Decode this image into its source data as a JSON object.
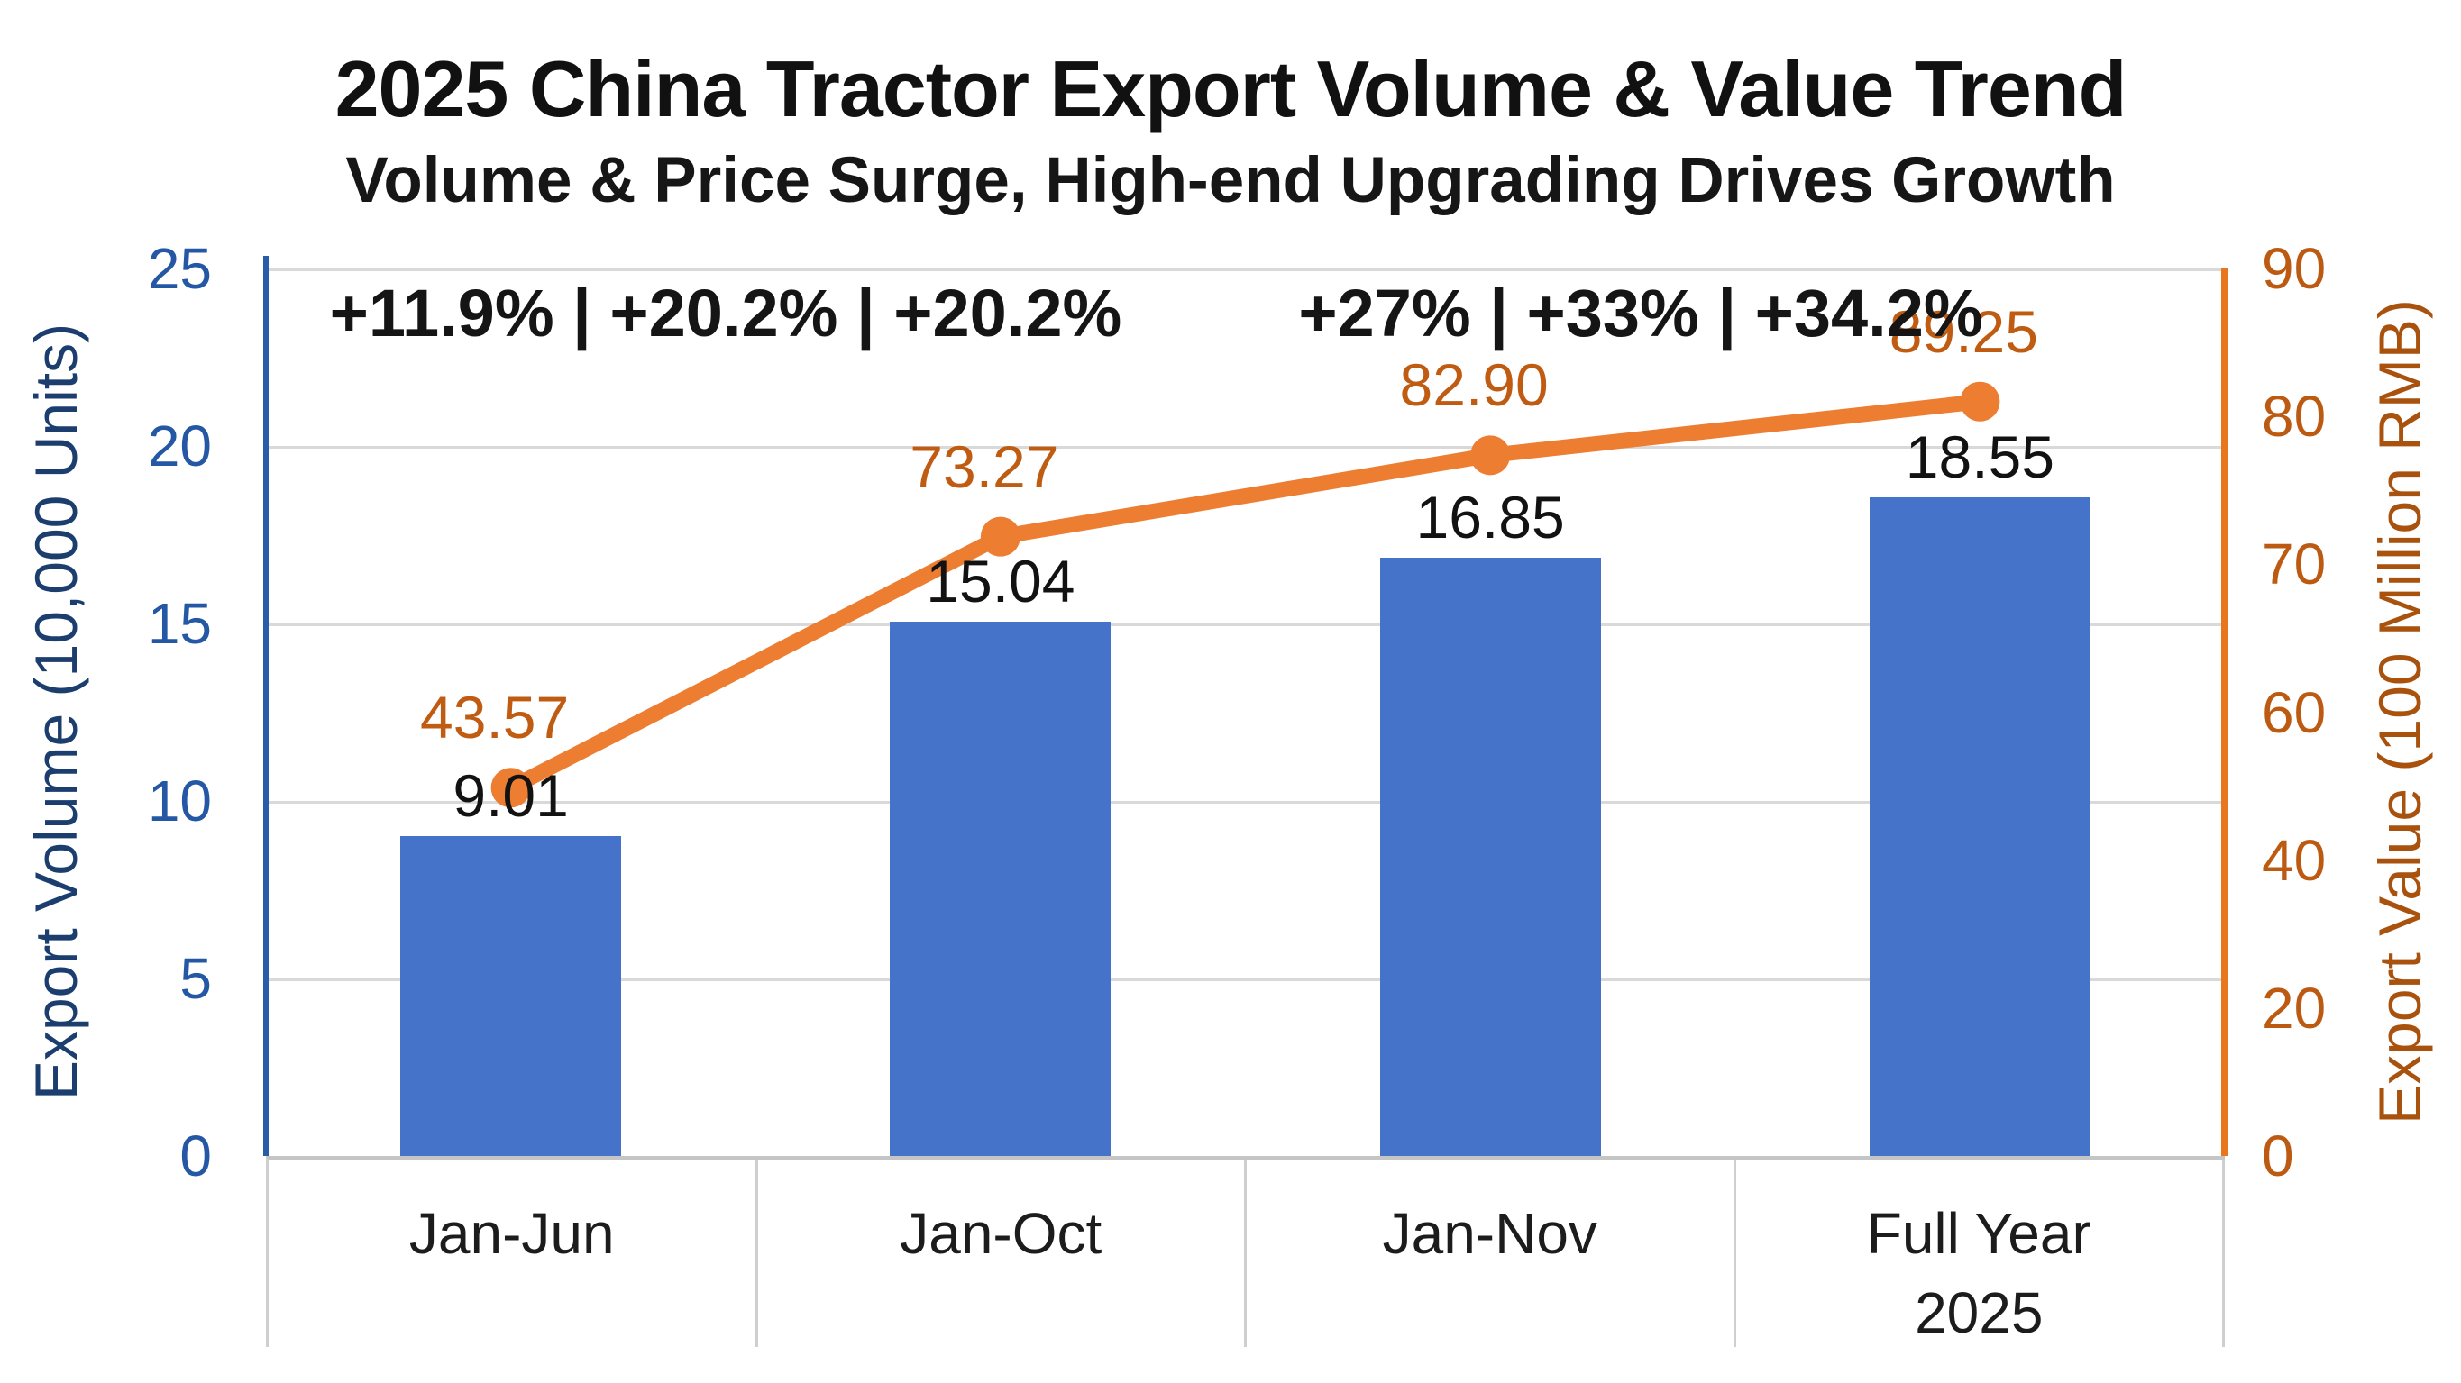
{
  "title": "2025 China Tractor Export Volume & Value Trend",
  "subtitle": "Volume & Price Surge, High-end Upgrading Drives Growth",
  "annotations": {
    "volume_growth": "+11.9% | +20.2% | +20.2%",
    "value_growth": "+27% | +33% | +34.2%"
  },
  "colors": {
    "bar": "#4573c9",
    "line": "#ed7d31",
    "line_label": "#c05b12",
    "left_tick": "#2457a4",
    "right_tick": "#bc5a11",
    "gridline": "#d9d9d9"
  },
  "chart_data": {
    "type": "bar",
    "subtype": "combo-bar-line",
    "categories": [
      "Jan-Jun",
      "Jan-Oct",
      "Jan-Nov",
      "Full Year\n2025"
    ],
    "series": [
      {
        "name": "Export Volume",
        "type": "bar",
        "axis": "left",
        "values": [
          9.01,
          15.04,
          16.85,
          18.55
        ],
        "labels": [
          "9.01",
          "15.04",
          "16.85",
          "18.55"
        ],
        "color": "#4573c9"
      },
      {
        "name": "Export Value",
        "type": "line",
        "axis": "right",
        "values": [
          43.57,
          73.27,
          82.9,
          89.25
        ],
        "labels": [
          "43.57",
          "73.27",
          "82.90",
          "89.25"
        ],
        "color": "#ed7d31"
      }
    ],
    "left_axis": {
      "title": "Export Volume (10,000 Units)",
      "ticks": [
        "25",
        "20",
        "15",
        "10",
        "5",
        "0"
      ],
      "range": [
        0,
        25
      ]
    },
    "right_axis": {
      "title": "Export Value (100 Million RMB)",
      "ticks": [
        "90",
        "80",
        "70",
        "60",
        "40",
        "20",
        "0"
      ],
      "range": [
        0,
        90
      ]
    },
    "grid": true,
    "legend_position": "none",
    "title": "2025 China Tractor Export Volume & Value Trend",
    "subtitle": "Volume & Price Surge, High-end Upgrading Drives Growth"
  }
}
